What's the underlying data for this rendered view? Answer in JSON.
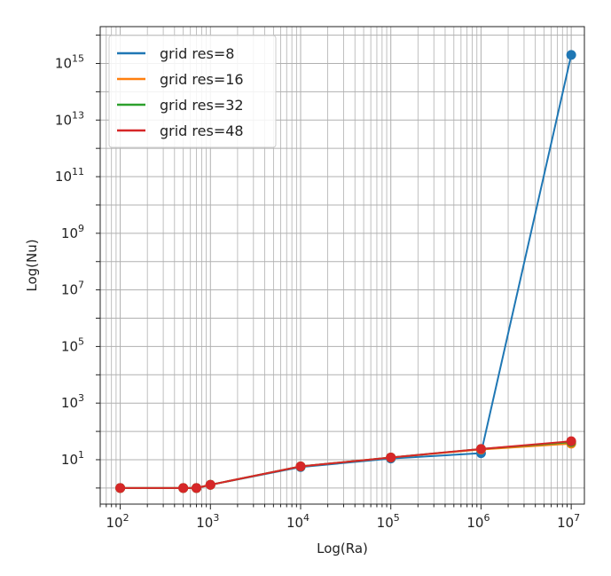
{
  "chart_data": {
    "type": "line",
    "xlabel": "Log(Ra)",
    "ylabel": "Log(Nu)",
    "xscale": "log",
    "yscale": "log",
    "xlim": [
      60,
      14000000
    ],
    "ylim": [
      0.27,
      2e+16
    ],
    "grid": "both-major-and-minor",
    "legend_position": "top-left",
    "markers": "circle",
    "x_ticks": [
      {
        "value": 100,
        "base": "10",
        "exp": "2"
      },
      {
        "value": 1000,
        "base": "10",
        "exp": "3"
      },
      {
        "value": 10000,
        "base": "10",
        "exp": "4"
      },
      {
        "value": 100000,
        "base": "10",
        "exp": "5"
      },
      {
        "value": 1000000,
        "base": "10",
        "exp": "6"
      },
      {
        "value": 10000000,
        "base": "10",
        "exp": "7"
      }
    ],
    "y_ticks": [
      {
        "value": 10,
        "base": "10",
        "exp": "1"
      },
      {
        "value": 1000,
        "base": "10",
        "exp": "3"
      },
      {
        "value": 100000,
        "base": "10",
        "exp": "5"
      },
      {
        "value": 10000000,
        "base": "10",
        "exp": "7"
      },
      {
        "value": 1000000000,
        "base": "10",
        "exp": "9"
      },
      {
        "value": 100000000000,
        "base": "10",
        "exp": "11"
      },
      {
        "value": 10000000000000,
        "base": "10",
        "exp": "13"
      },
      {
        "value": 1000000000000000,
        "base": "10",
        "exp": "15"
      }
    ],
    "series": [
      {
        "name": "grid res=8",
        "color": "#1f77b4",
        "x": [
          100,
          500,
          700,
          1000,
          10000,
          100000,
          1000000,
          10000000
        ],
        "y": [
          1.0,
          1.0,
          1.0,
          1.3,
          5.5,
          11.0,
          17.0,
          2000000000000000.0
        ]
      },
      {
        "name": "grid res=16",
        "color": "#ff7f0e",
        "x": [
          100,
          500,
          700,
          1000,
          10000,
          100000,
          1000000,
          10000000
        ],
        "y": [
          1.0,
          1.0,
          1.0,
          1.3,
          5.8,
          12.0,
          23.0,
          37.0
        ]
      },
      {
        "name": "grid res=32",
        "color": "#2ca02c",
        "x": [
          100,
          500,
          700,
          1000,
          10000,
          100000,
          1000000,
          10000000
        ],
        "y": [
          1.0,
          1.0,
          1.0,
          1.3,
          5.8,
          12.0,
          24.0,
          42.0
        ]
      },
      {
        "name": "grid res=48",
        "color": "#d62728",
        "x": [
          100,
          500,
          700,
          1000,
          10000,
          100000,
          1000000,
          10000000
        ],
        "y": [
          1.0,
          1.0,
          1.0,
          1.3,
          5.8,
          12.0,
          24.0,
          45.0
        ]
      }
    ]
  }
}
